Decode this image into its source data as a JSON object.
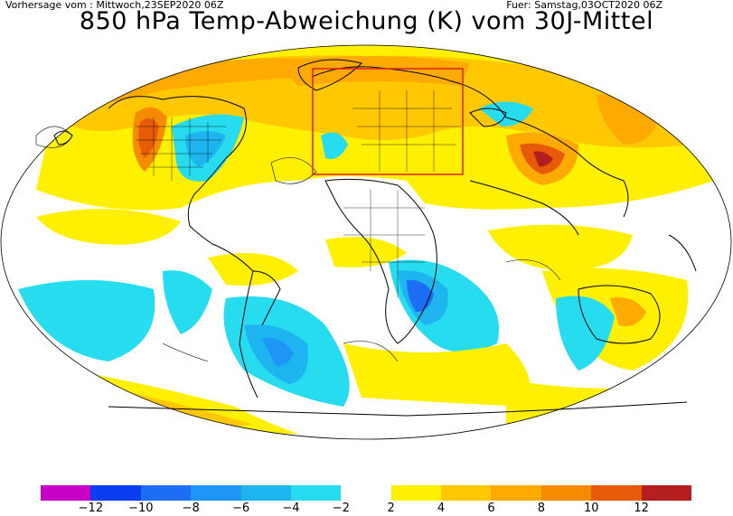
{
  "header": {
    "forecast_from": "Vorhersage vom : Mittwoch,23SEP2020 06Z",
    "forecast_for": "Fuer: Samstag,03OCT2020 06Z",
    "title": "850 hPa Temp-Abweichung (K) vom 30J-Mittel"
  },
  "map": {
    "projection": "world",
    "highlight_box_color": "#e02020",
    "coastline_color": "#000000"
  },
  "colorbar": {
    "segments": [
      {
        "from": -14,
        "to": -12,
        "color": "#c800c8"
      },
      {
        "from": -12,
        "to": -10,
        "color": "#0a3cf0"
      },
      {
        "from": -10,
        "to": -8,
        "color": "#1e6ef5"
      },
      {
        "from": -8,
        "to": -6,
        "color": "#1e96f5"
      },
      {
        "from": -6,
        "to": -4,
        "color": "#1eb4f0"
      },
      {
        "from": -4,
        "to": -2,
        "color": "#28dcf0"
      },
      {
        "from": -2,
        "to": 2,
        "color": "#ffffff"
      },
      {
        "from": 2,
        "to": 4,
        "color": "#fff000"
      },
      {
        "from": 4,
        "to": 6,
        "color": "#ffc800"
      },
      {
        "from": 6,
        "to": 8,
        "color": "#ffaa00"
      },
      {
        "from": 8,
        "to": 10,
        "color": "#f58c00"
      },
      {
        "from": 10,
        "to": 12,
        "color": "#e65a0a"
      },
      {
        "from": 12,
        "to": 14,
        "color": "#b41e1e"
      }
    ],
    "tick_labels": [
      "-12",
      "-10",
      "-8",
      "-6",
      "-4",
      "-2",
      "2",
      "4",
      "6",
      "8",
      "10",
      "12"
    ]
  }
}
